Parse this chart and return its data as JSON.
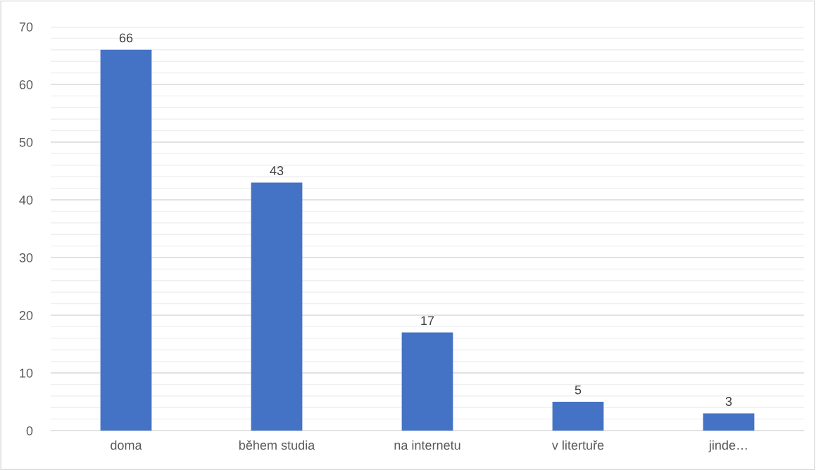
{
  "chart_data": {
    "type": "bar",
    "categories": [
      "doma",
      "během studia",
      "na internetu",
      "v litertuře",
      "jinde…"
    ],
    "values": [
      66,
      43,
      17,
      5,
      3
    ],
    "color": "#4472c4",
    "ylim": [
      0,
      70
    ],
    "yticks": [
      0,
      {
        "value": 2,
        "label": null
      },
      {
        "value": 4,
        "label": null
      },
      {
        "value": 6,
        "label": null
      },
      {
        "value": 8,
        "label": null
      },
      10,
      {
        "value": 12,
        "label": null
      },
      {
        "value": 14,
        "label": null
      },
      {
        "value": 16,
        "label": null
      },
      {
        "value": 18,
        "label": null
      },
      20,
      {
        "value": 22,
        "label": null
      },
      {
        "value": 24,
        "label": null
      },
      {
        "value": 26,
        "label": null
      },
      {
        "value": 28,
        "label": null
      },
      30,
      {
        "value": 32,
        "label": null
      },
      {
        "value": 34,
        "label": null
      },
      {
        "value": 36,
        "label": null
      },
      {
        "value": 38,
        "label": null
      },
      40,
      {
        "value": 42,
        "label": null
      },
      {
        "value": 44,
        "label": null
      },
      {
        "value": 46,
        "label": null
      },
      {
        "value": 48,
        "label": null
      },
      50,
      {
        "value": 52,
        "label": null
      },
      {
        "value": 54,
        "label": null
      },
      {
        "value": 56,
        "label": null
      },
      {
        "value": 58,
        "label": null
      },
      60,
      {
        "value": 62,
        "label": null
      },
      {
        "value": 64,
        "label": null
      },
      {
        "value": 66,
        "label": null
      },
      {
        "value": 68,
        "label": null
      },
      70
    ],
    "grid": "y",
    "data_labels": true
  }
}
